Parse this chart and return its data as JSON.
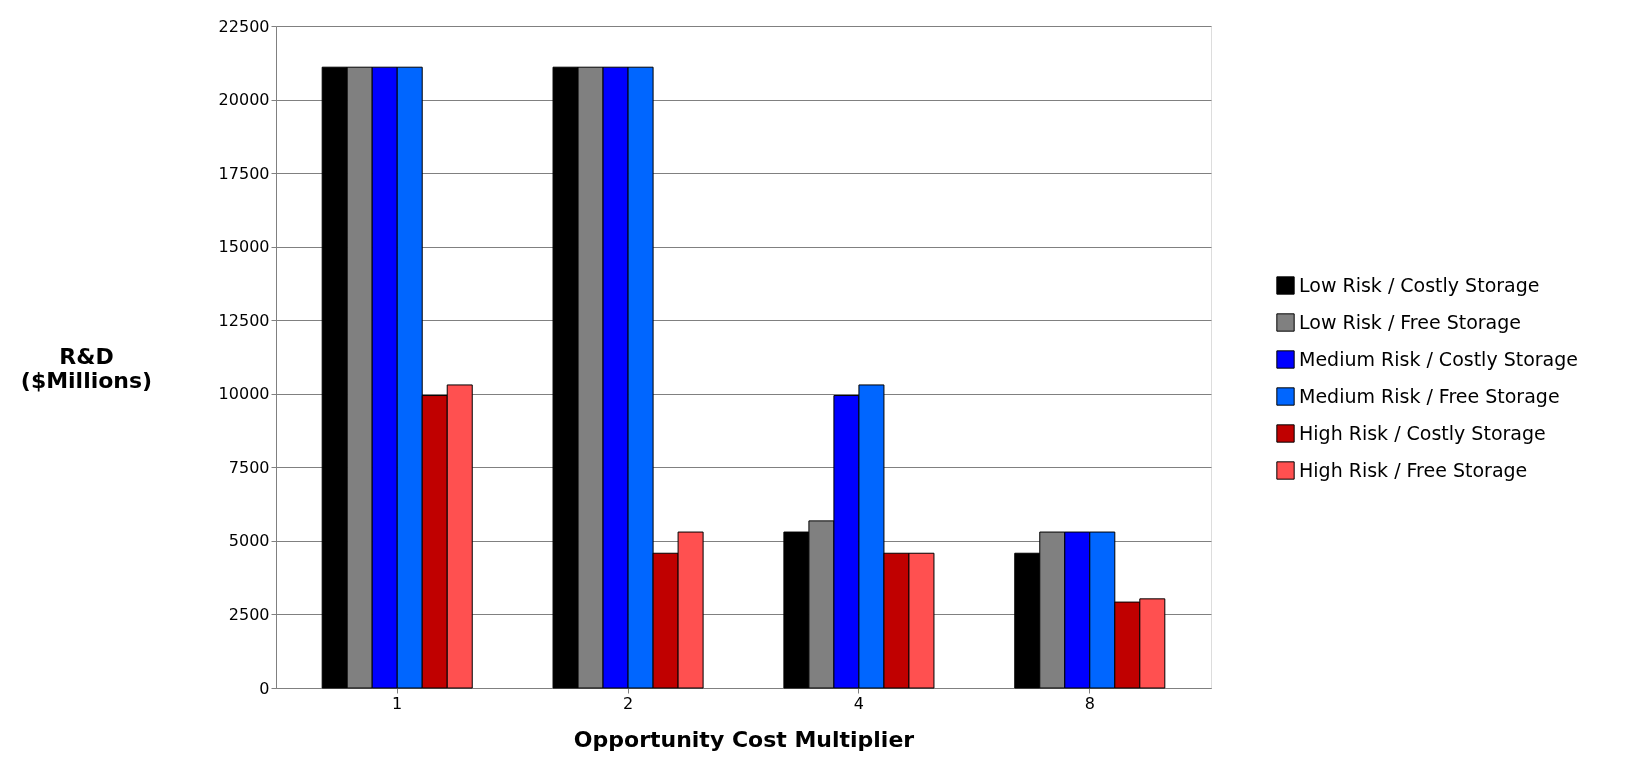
{
  "chart_data": {
    "type": "bar",
    "xlabel": "Opportunity Cost Multiplier",
    "ylabel": "R&D ($Millions)",
    "categories": [
      "1",
      "2",
      "4",
      "8"
    ],
    "series": [
      {
        "name": "Low Risk / Costly Storage",
        "color": "#000000",
        "values": [
          21100,
          21100,
          5300,
          4580
        ]
      },
      {
        "name": "Low Risk / Free Storage",
        "color": "#808080",
        "values": [
          21100,
          21100,
          5680,
          5300
        ]
      },
      {
        "name": "Medium Risk / Costly Storage",
        "color": "#0000ff",
        "values": [
          21100,
          21100,
          9940,
          5300
        ]
      },
      {
        "name": "Medium Risk / Free Storage",
        "color": "#0066ff",
        "values": [
          21100,
          21100,
          10300,
          5300
        ]
      },
      {
        "name": "High Risk / Costly Storage",
        "color": "#c00000",
        "values": [
          9940,
          4580,
          4580,
          2920
        ]
      },
      {
        "name": "High Risk / Free Storage",
        "color": "#ff5050",
        "values": [
          10300,
          5300,
          4580,
          3030
        ]
      }
    ],
    "ylim": [
      0,
      22500
    ],
    "yticks": [
      0,
      2500,
      5000,
      7500,
      10000,
      12500,
      15000,
      17500,
      20000,
      22500
    ],
    "grid": "y",
    "legend": "right"
  }
}
